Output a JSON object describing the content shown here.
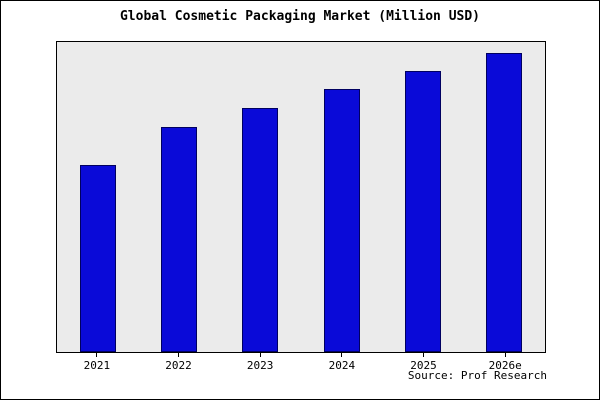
{
  "title": "Global Cosmetic Packaging Market (Million USD)",
  "source": "Source: Prof Research",
  "colors": {
    "bar_fill": "#0a0ad8",
    "bar_border": "#000060",
    "plot_background": "#ebebeb"
  },
  "chart_data": {
    "type": "bar",
    "title": "Global Cosmetic Packaging Market (Million USD)",
    "categories": [
      "2021",
      "2022",
      "2023",
      "2024",
      "2025",
      "2026e"
    ],
    "values": [
      62.5,
      75.3,
      81.6,
      88,
      94,
      100
    ],
    "xlabel": "",
    "ylabel": "",
    "ylim": [
      0,
      103.6
    ],
    "grid": false,
    "legend": "none",
    "annotations": [
      "Source: Prof Research"
    ]
  }
}
